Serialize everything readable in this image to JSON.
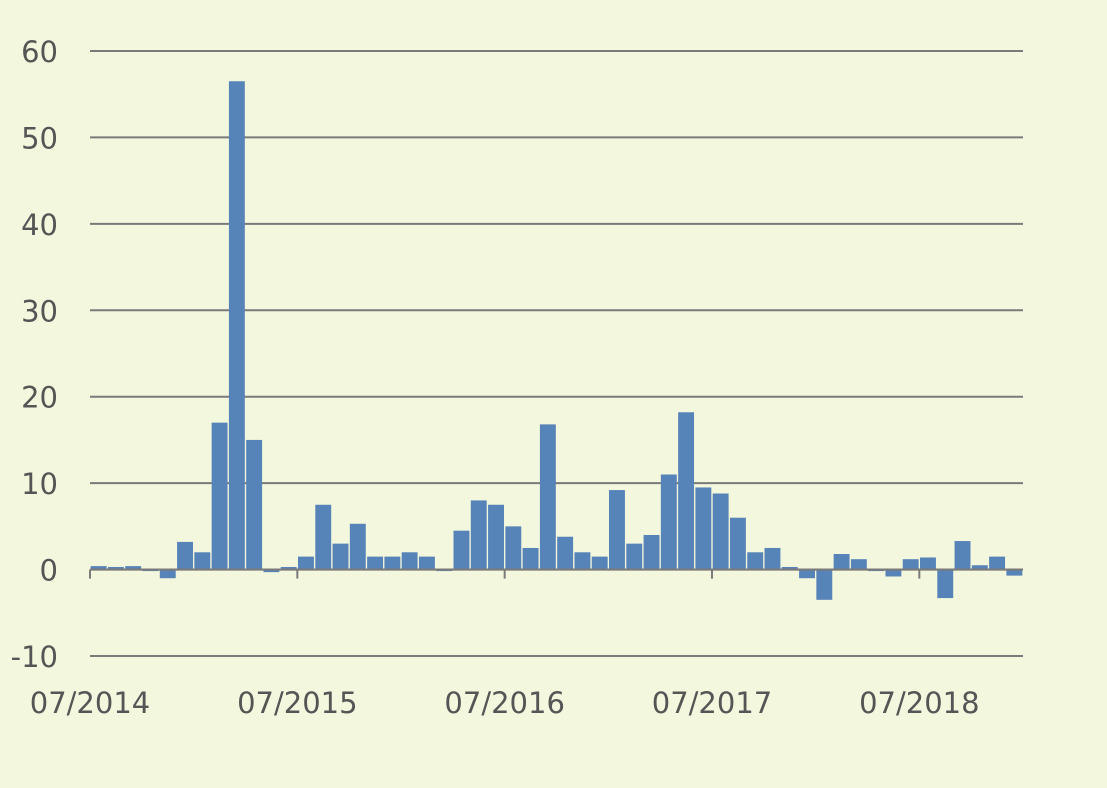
{
  "chart_data": {
    "type": "bar",
    "title": "",
    "xlabel": "",
    "ylabel": "",
    "ylim": [
      -10,
      60
    ],
    "yticks": [
      -10,
      0,
      10,
      20,
      30,
      40,
      50,
      60
    ],
    "xticks": [
      "07/2014",
      "07/2015",
      "07/2016",
      "07/2017",
      "07/2018"
    ],
    "xrange": [
      "2014-07",
      "2019-01"
    ],
    "grid": "horizontal",
    "legend": "none",
    "bar_color": "#5683b8",
    "grid_color": "#7a7a7a",
    "background": "#f3f7dd",
    "x": [
      "2014-07",
      "2014-08",
      "2014-09",
      "2014-10",
      "2014-11",
      "2014-12",
      "2015-01",
      "2015-02",
      "2015-03",
      "2015-04",
      "2015-05",
      "2015-06",
      "2015-07",
      "2015-08",
      "2015-09",
      "2015-10",
      "2015-11",
      "2015-12",
      "2016-01",
      "2016-02",
      "2016-03",
      "2016-04",
      "2016-05",
      "2016-06",
      "2016-07",
      "2016-08",
      "2016-09",
      "2016-10",
      "2016-11",
      "2016-12",
      "2017-01",
      "2017-02",
      "2017-03",
      "2017-04",
      "2017-05",
      "2017-06",
      "2017-07",
      "2017-08",
      "2017-09",
      "2017-10",
      "2017-11",
      "2017-12",
      "2018-01",
      "2018-02",
      "2018-03",
      "2018-04",
      "2018-05",
      "2018-06",
      "2018-07",
      "2018-08",
      "2018-09",
      "2018-10",
      "2018-11",
      "2018-12"
    ],
    "values": [
      0.4,
      0.3,
      0.4,
      0.0,
      -1.0,
      3.2,
      2.0,
      17.0,
      56.5,
      15.0,
      -0.3,
      0.3,
      1.5,
      7.5,
      3.0,
      5.3,
      1.5,
      1.5,
      2.0,
      1.5,
      0.0,
      4.5,
      8.0,
      7.5,
      5.0,
      2.5,
      16.8,
      3.8,
      2.0,
      1.5,
      9.2,
      3.0,
      4.0,
      11.0,
      18.2,
      9.5,
      8.8,
      6.0,
      2.0,
      2.5,
      0.3,
      -1.0,
      -3.5,
      1.8,
      1.2,
      0.0,
      -0.8,
      1.2,
      1.4,
      -3.3,
      3.3,
      0.5,
      1.5,
      -0.7
    ]
  }
}
